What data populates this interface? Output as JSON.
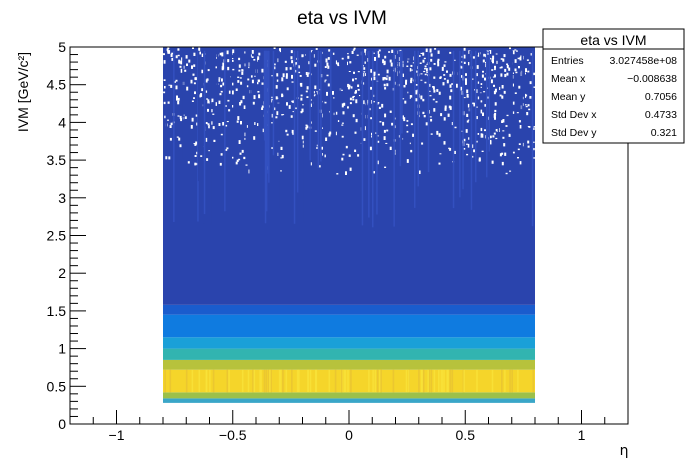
{
  "chart_data": {
    "type": "heatmap",
    "title": "eta vs IVM",
    "xlabel": "η",
    "ylabel": "IVM [GeV/c²]",
    "xlim": [
      -1.2,
      1.2
    ],
    "ylim": [
      0,
      5
    ],
    "x_ticks": [
      "−1",
      "−0.5",
      "0",
      "0.5",
      "1"
    ],
    "x_tick_values": [
      -1,
      -0.5,
      0,
      0.5,
      1
    ],
    "y_ticks": [
      "0",
      "0.5",
      "1",
      "1.5",
      "2",
      "2.5",
      "3",
      "3.5",
      "4",
      "4.5",
      "5"
    ],
    "y_tick_values": [
      0,
      0.5,
      1,
      1.5,
      2,
      2.5,
      3,
      3.5,
      4,
      4.5,
      5
    ],
    "filled_region": {
      "x_range": [
        -0.8,
        0.8
      ],
      "y_range": [
        0.28,
        5.0
      ]
    },
    "bands": [
      {
        "y_from": 0.28,
        "y_to": 0.34,
        "color": "#3aa6c8"
      },
      {
        "y_from": 0.34,
        "y_to": 0.42,
        "color": "#9cc04a"
      },
      {
        "y_from": 0.42,
        "y_to": 0.72,
        "color": "#f5d52a"
      },
      {
        "y_from": 0.72,
        "y_to": 0.85,
        "color": "#b7c23c"
      },
      {
        "y_from": 0.85,
        "y_to": 1.0,
        "color": "#32b4b0"
      },
      {
        "y_from": 1.0,
        "y_to": 1.15,
        "color": "#1aa0d8"
      },
      {
        "y_from": 1.15,
        "y_to": 1.45,
        "color": "#0f7be0"
      },
      {
        "y_from": 1.45,
        "y_to": 1.58,
        "color": "#1a5ccd"
      },
      {
        "y_from": 1.58,
        "y_to": 5.0,
        "color": "#2a44ad"
      }
    ],
    "stats_box": {
      "title": "eta vs IVM",
      "rows": [
        {
          "label": "Entries",
          "value": "3.027458e+08"
        },
        {
          "label": "Mean x",
          "value": "−0.008638"
        },
        {
          "label": "Mean y",
          "value": "0.7056"
        },
        {
          "label": "Std Dev x",
          "value": "0.4733"
        },
        {
          "label": "Std Dev y",
          "value": "0.321"
        }
      ]
    }
  }
}
